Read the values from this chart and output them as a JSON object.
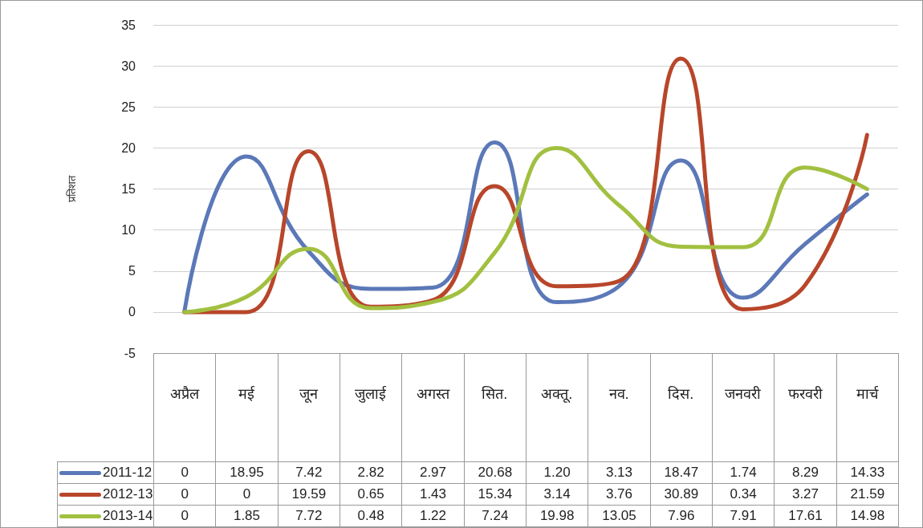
{
  "chart_data": {
    "type": "line",
    "ylabel": "प्रतिशत",
    "categories": [
      "अप्रैल",
      "मई",
      "जून",
      "जुलाई",
      "अगस्त",
      "सित.",
      "अक्तू.",
      "नव.",
      "दिस.",
      "जनवरी",
      "फरवरी",
      "मार्च"
    ],
    "series": [
      {
        "name": "2011-12",
        "color": "#5b78b8",
        "values": [
          0,
          18.95,
          7.42,
          2.82,
          2.97,
          20.68,
          1.2,
          3.13,
          18.47,
          1.74,
          8.29,
          14.33
        ],
        "value_labels": [
          "0",
          "18.95",
          "7.42",
          "2.82",
          "2.97",
          "20.68",
          "1.20",
          "3.13",
          "18.47",
          "1.74",
          "8.29",
          "14.33"
        ]
      },
      {
        "name": "2012-13",
        "color": "#b8462a",
        "values": [
          0,
          0,
          19.59,
          0.65,
          1.43,
          15.34,
          3.14,
          3.76,
          30.89,
          0.34,
          3.27,
          21.59
        ],
        "value_labels": [
          "0",
          "0",
          "19.59",
          "0.65",
          "1.43",
          "15.34",
          "3.14",
          "3.76",
          "30.89",
          "0.34",
          "3.27",
          "21.59"
        ]
      },
      {
        "name": "2013-14",
        "color": "#a2c040",
        "values": [
          0,
          1.85,
          7.72,
          0.48,
          1.22,
          7.24,
          19.98,
          13.05,
          7.96,
          7.91,
          17.61,
          14.98
        ],
        "value_labels": [
          "0",
          "1.85",
          "7.72",
          "0.48",
          "1.22",
          "7.24",
          "19.98",
          "13.05",
          "7.96",
          "7.91",
          "17.61",
          "14.98"
        ]
      }
    ],
    "ylim": [
      -5,
      35
    ],
    "yticks": [
      -5,
      0,
      5,
      10,
      15,
      20,
      25,
      30,
      35
    ],
    "grid": "y",
    "legend": "bottom",
    "marker": "none",
    "line_style": "solid"
  }
}
